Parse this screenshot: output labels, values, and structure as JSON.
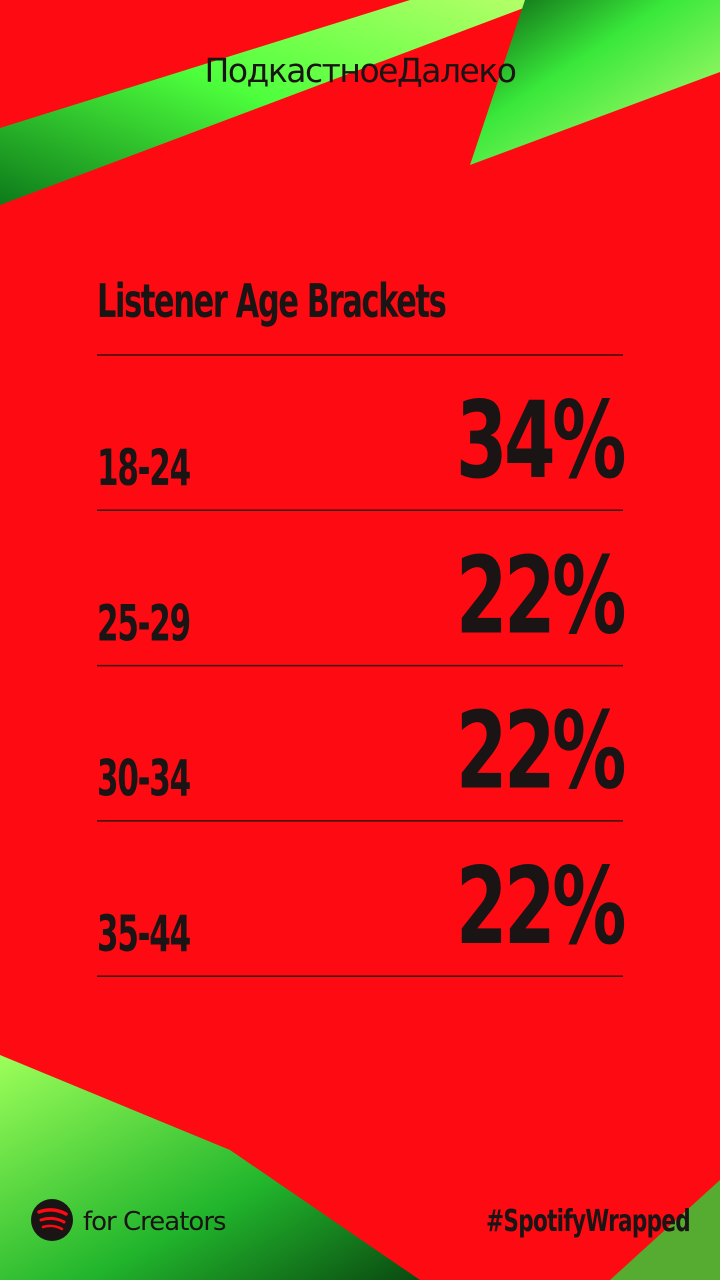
{
  "header": {
    "title": "ПодкастноеДалеко"
  },
  "section": {
    "title": "Listener Age Brackets",
    "rows": [
      {
        "label": "18-24",
        "value": "34%"
      },
      {
        "label": "25-29",
        "value": "22%"
      },
      {
        "label": "30-34",
        "value": "22%"
      },
      {
        "label": "35-44",
        "value": "22%"
      }
    ]
  },
  "footer": {
    "brand": "for Creators",
    "hashtag": "#SpotifyWrapped"
  }
}
